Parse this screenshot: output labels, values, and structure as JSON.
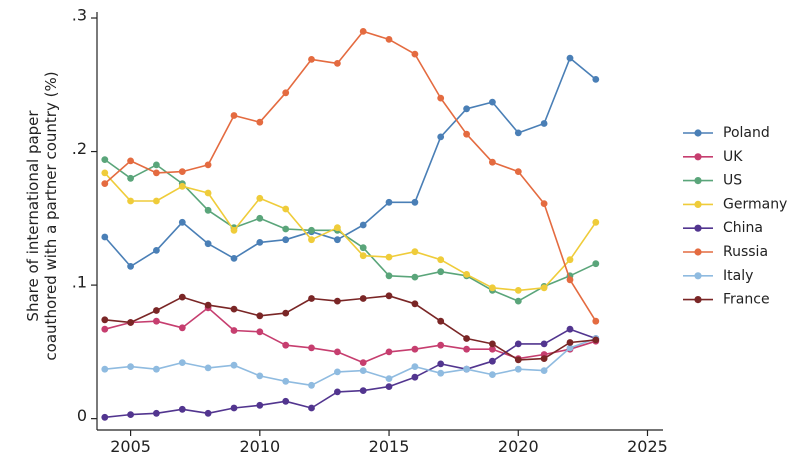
{
  "chart_data": {
    "type": "line",
    "ylabel_lines": [
      "Share of international paper",
      "coauthored with a partner country (%)"
    ],
    "xlabel": "",
    "xlim": [
      2003.7,
      2025.6
    ],
    "ylim": [
      -0.0085,
      0.3045
    ],
    "x_ticks": [
      {
        "value": 2005,
        "label": "2005"
      },
      {
        "value": 2010,
        "label": "2010"
      },
      {
        "value": 2015,
        "label": "2015"
      },
      {
        "value": 2020,
        "label": "2020"
      },
      {
        "value": 2025,
        "label": "2025"
      }
    ],
    "y_ticks": [
      {
        "value": 0,
        "label": "0"
      },
      {
        "value": 0.1,
        "label": ".1"
      },
      {
        "value": 0.2,
        "label": ".2"
      },
      {
        "value": 0.3,
        "label": ".3"
      }
    ],
    "grid": false,
    "legend_position": "right",
    "x": [
      2004,
      2005,
      2006,
      2007,
      2008,
      2009,
      2010,
      2011,
      2012,
      2013,
      2014,
      2015,
      2016,
      2017,
      2018,
      2019,
      2020,
      2021,
      2022,
      2023
    ],
    "series": [
      {
        "name": "Poland",
        "color": "#4a7fb6",
        "values": [
          0.136,
          0.114,
          0.126,
          0.147,
          0.131,
          0.12,
          0.132,
          0.134,
          0.14,
          0.134,
          0.145,
          0.162,
          0.162,
          0.211,
          0.232,
          0.237,
          0.214,
          0.221,
          0.27,
          0.254
        ]
      },
      {
        "name": "UK",
        "color": "#c63e6f",
        "values": [
          0.067,
          0.072,
          0.073,
          0.068,
          0.083,
          0.066,
          0.065,
          0.055,
          0.053,
          0.05,
          0.042,
          0.05,
          0.052,
          0.055,
          0.052,
          0.052,
          0.045,
          0.048,
          0.052,
          0.058
        ]
      },
      {
        "name": "US",
        "color": "#5aa57a",
        "values": [
          0.194,
          0.18,
          0.19,
          0.176,
          0.156,
          0.143,
          0.15,
          0.142,
          0.141,
          0.141,
          0.128,
          0.107,
          0.106,
          0.11,
          0.107,
          0.096,
          0.088,
          0.099,
          0.107,
          0.116
        ]
      },
      {
        "name": "Germany",
        "color": "#efcc3a",
        "values": [
          0.184,
          0.163,
          0.163,
          0.174,
          0.169,
          0.141,
          0.165,
          0.157,
          0.134,
          0.143,
          0.122,
          0.121,
          0.125,
          0.119,
          0.108,
          0.098,
          0.096,
          0.098,
          0.119,
          0.147
        ]
      },
      {
        "name": "China",
        "color": "#52358f",
        "values": [
          0.001,
          0.003,
          0.004,
          0.007,
          0.004,
          0.008,
          0.01,
          0.013,
          0.008,
          0.02,
          0.021,
          0.024,
          0.031,
          0.041,
          0.037,
          0.043,
          0.056,
          0.056,
          0.067,
          0.06
        ]
      },
      {
        "name": "Russia",
        "color": "#e46b40",
        "values": [
          0.176,
          0.193,
          0.184,
          0.185,
          0.19,
          0.227,
          0.222,
          0.244,
          0.269,
          0.266,
          0.29,
          0.284,
          0.273,
          0.24,
          0.213,
          0.192,
          0.185,
          0.161,
          0.104,
          0.073
        ]
      },
      {
        "name": "Italy",
        "color": "#8fbbe0",
        "values": [
          0.037,
          0.039,
          0.037,
          0.042,
          0.038,
          0.04,
          0.032,
          0.028,
          0.025,
          0.035,
          0.036,
          0.03,
          0.039,
          0.034,
          0.037,
          0.033,
          0.037,
          0.036,
          0.053,
          0.06
        ]
      },
      {
        "name": "France",
        "color": "#7a2626",
        "values": [
          0.074,
          0.072,
          0.081,
          0.091,
          0.085,
          0.082,
          0.077,
          0.079,
          0.09,
          0.088,
          0.09,
          0.092,
          0.086,
          0.073,
          0.06,
          0.056,
          0.044,
          0.045,
          0.057,
          0.059
        ]
      }
    ]
  }
}
